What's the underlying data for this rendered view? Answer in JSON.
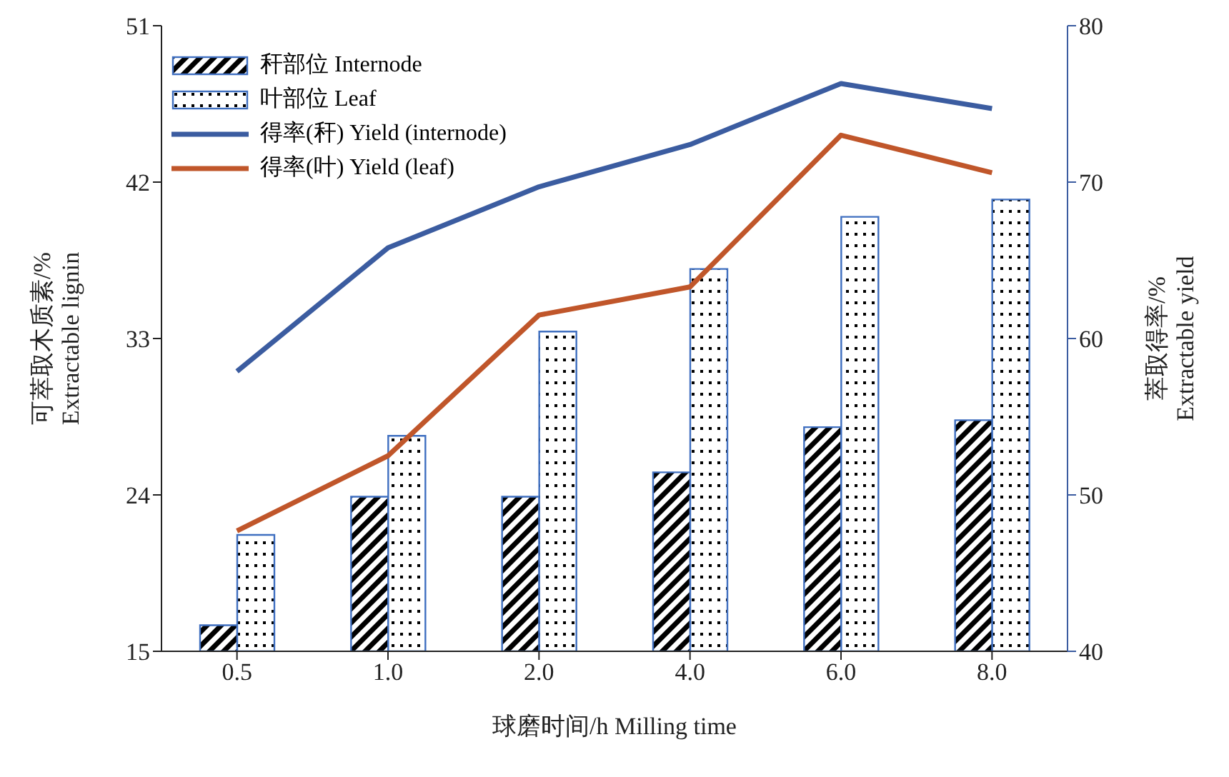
{
  "chart_data": {
    "type": "bar",
    "categories": [
      "0.5",
      "1.0",
      "2.0",
      "4.0",
      "6.0",
      "8.0"
    ],
    "xlabel": "球磨时间/h  Milling time",
    "ylabel": "可萃取木质素/%\nExtractable lignin",
    "y2label": "萃取得率/%\nExtractable yield",
    "ylim": [
      15,
      51
    ],
    "yticks": [
      15,
      24,
      33,
      42,
      51
    ],
    "y2lim": [
      40,
      80
    ],
    "y2ticks": [
      40,
      50,
      60,
      70,
      80
    ],
    "legend": "top left",
    "grid": false,
    "series": [
      {
        "name": "秆部位 Internode",
        "color": "#3f6fc0",
        "values": [
          16.5,
          23.9,
          23.9,
          25.3,
          27.9,
          28.3
        ]
      },
      {
        "name": "叶部位 Leaf",
        "color": "#3f6fc0",
        "values": [
          21.7,
          27.4,
          33.4,
          37.0,
          40.0,
          41.0
        ]
      },
      {
        "name": "得率(秆) Yield (internode)",
        "type": "line",
        "axis": "y2",
        "color": "#3b5ca0",
        "values": [
          57.9,
          65.8,
          69.7,
          72.4,
          76.3,
          74.7
        ]
      },
      {
        "name": "得率(叶) Yield (leaf)",
        "type": "line",
        "axis": "y2",
        "color": "#c0562a",
        "values": [
          47.7,
          52.5,
          61.5,
          63.3,
          73.0,
          70.6
        ]
      }
    ]
  }
}
